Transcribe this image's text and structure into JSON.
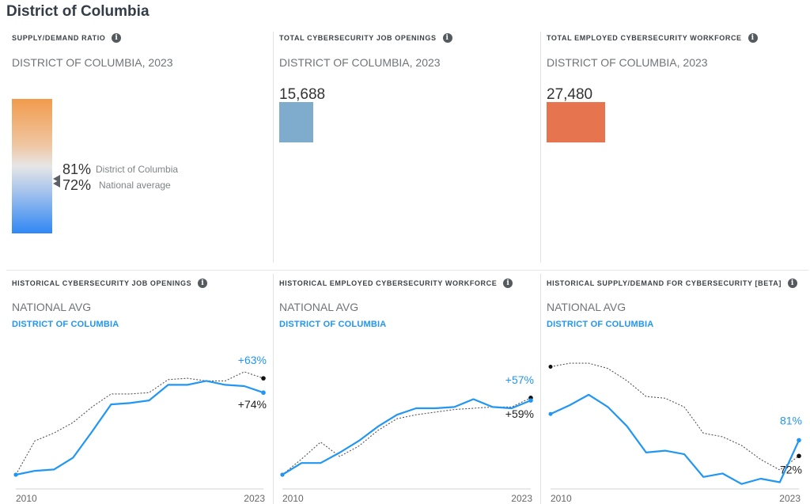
{
  "page": {
    "title": "District of Columbia"
  },
  "colors": {
    "dc": "#2196f3",
    "national": "#222222",
    "openings_bar": "#7faccc",
    "workforce_bar": "#e5744f"
  },
  "top_panels": {
    "ratio": {
      "title": "SUPPLY/DEMAND RATIO",
      "subtitle": "DISTRICT OF COLUMBIA, 2023",
      "dc_value": "81%",
      "dc_label": "District of Columbia",
      "nat_value": "72%",
      "nat_label": "National average"
    },
    "openings": {
      "title": "TOTAL CYBERSECURITY JOB OPENINGS",
      "subtitle": "DISTRICT OF COLUMBIA, 2023",
      "value": "15,688"
    },
    "workforce": {
      "title": "TOTAL EMPLOYED CYBERSECURITY WORKFORCE",
      "subtitle": "DISTRICT OF COLUMBIA, 2023",
      "value": "27,480"
    }
  },
  "legend": {
    "national": "NATIONAL AVG",
    "dc": "DISTRICT OF COLUMBIA"
  },
  "chart_data": [
    {
      "type": "line",
      "title": "HISTORICAL CYBERSECURITY JOB OPENINGS",
      "x": [
        2010,
        2011,
        2012,
        2013,
        2014,
        2015,
        2016,
        2017,
        2018,
        2019,
        2020,
        2021,
        2022,
        2023
      ],
      "x_tick_labels": [
        "2010",
        "2023"
      ],
      "unit": "% change since 2010",
      "ylim": [
        0,
        85
      ],
      "series": [
        {
          "name": "DISTRICT OF COLUMBIA",
          "color": "#2196f3",
          "style": "solid",
          "values": [
            0,
            3,
            4,
            13,
            33,
            54,
            55,
            57,
            69,
            69,
            72,
            69,
            68,
            63
          ],
          "end_label": "+63%"
        },
        {
          "name": "NATIONAL AVG",
          "color": "#222222",
          "style": "dotted",
          "values": [
            0,
            26,
            32,
            40,
            52,
            62,
            62,
            63,
            73,
            74,
            72,
            72,
            79,
            74
          ],
          "end_label": "+74%"
        }
      ]
    },
    {
      "type": "line",
      "title": "HISTORICAL EMPLOYED CYBERSECURITY WORKFORCE",
      "x": [
        2010,
        2011,
        2012,
        2013,
        2014,
        2015,
        2016,
        2017,
        2018,
        2019,
        2020,
        2021,
        2022,
        2023
      ],
      "x_tick_labels": [
        "2010",
        "2023"
      ],
      "unit": "% change since 2010",
      "ylim": [
        0,
        85
      ],
      "series": [
        {
          "name": "DISTRICT OF COLUMBIA",
          "color": "#2196f3",
          "style": "solid",
          "values": [
            0,
            9,
            9,
            17,
            26,
            37,
            46,
            51,
            51,
            52,
            58,
            52,
            51,
            57
          ],
          "end_label": "+57%"
        },
        {
          "name": "NATIONAL AVG",
          "color": "#222222",
          "style": "dotted",
          "values": [
            0,
            12,
            25,
            14,
            22,
            34,
            43,
            46,
            48,
            50,
            51,
            52,
            52,
            59
          ],
          "end_label": "+59%"
        }
      ]
    },
    {
      "type": "line",
      "title": "HISTORICAL SUPPLY/DEMAND FOR CYBERSECURITY [BETA]",
      "x": [
        2010,
        2011,
        2012,
        2013,
        2014,
        2015,
        2016,
        2017,
        2018,
        2019,
        2020,
        2021,
        2022,
        2023
      ],
      "x_tick_labels": [
        "2010",
        "2023"
      ],
      "unit": "supply/demand ratio %",
      "ylim": [
        45,
        130
      ],
      "series": [
        {
          "name": "DISTRICT OF COLUMBIA",
          "color": "#2196f3",
          "style": "solid",
          "values": [
            96,
            101,
            107,
            100,
            89,
            74,
            75,
            73,
            60,
            62,
            56,
            59,
            57,
            81
          ],
          "end_label": "81%"
        },
        {
          "name": "NATIONAL AVG",
          "color": "#222222",
          "style": "dotted",
          "values": [
            123,
            125,
            125,
            122,
            115,
            106,
            105,
            100,
            85,
            83,
            78,
            70,
            64,
            72
          ],
          "end_label": "72%"
        }
      ]
    }
  ]
}
